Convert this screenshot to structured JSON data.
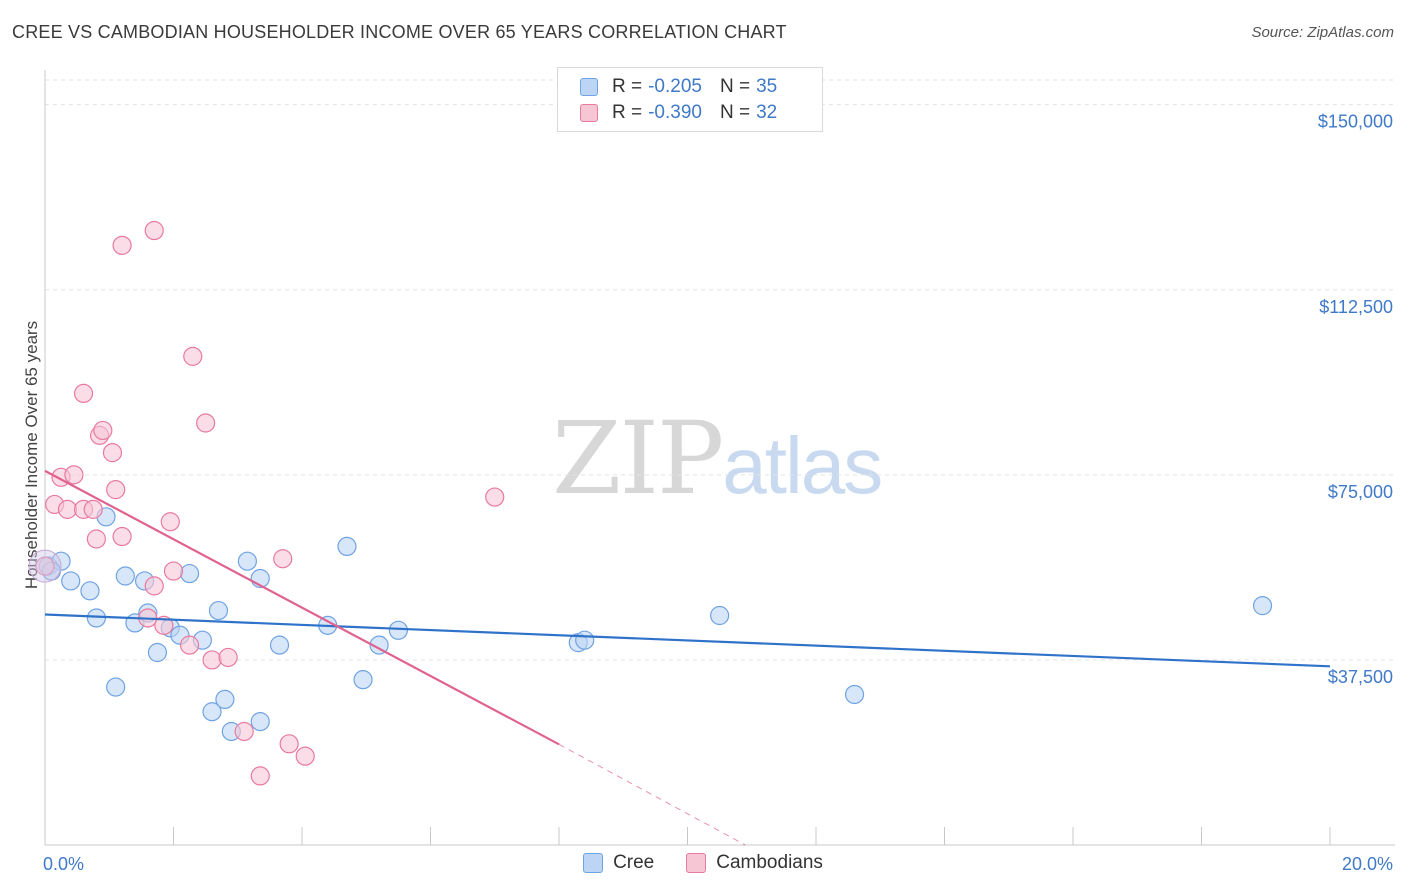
{
  "title": "CREE VS CAMBODIAN HOUSEHOLDER INCOME OVER 65 YEARS CORRELATION CHART",
  "source": "Source: ZipAtlas.com",
  "watermark": {
    "part1": "ZIP",
    "part2": "atlas"
  },
  "legend": {
    "rows": [
      {
        "r_label": "R = ",
        "r_value": "-0.205",
        "n_label": "N = ",
        "n_value": "35",
        "color": "#a8c8f0"
      },
      {
        "r_label": "R = ",
        "r_value": "-0.390",
        "n_label": "N = ",
        "n_value": "32",
        "color": "#f5b8cb"
      }
    ]
  },
  "bottom_legend": [
    "Cree",
    "Cambodians"
  ],
  "colors": {
    "cree": "#6fa3e3",
    "cree_fill": "#bcd5f4",
    "cambodian": "#e87a9e",
    "cambodian_fill": "#f7c6d5",
    "cree_line": "#2f72c9",
    "cambodian_line": "#e0628e",
    "tick_text": "#3f79c8"
  },
  "chart_data": {
    "type": "scatter",
    "title": "CREE VS CAMBODIAN HOUSEHOLDER INCOME OVER 65 YEARS CORRELATION CHART",
    "xlabel": "",
    "ylabel": "Householder Income Over 65 years",
    "xlim": [
      0,
      20
    ],
    "ylim": [
      0,
      155000
    ],
    "x_tick_labels": [
      "0.0%",
      "20.0%"
    ],
    "y_ticks": [
      37500,
      75000,
      112500,
      150000
    ],
    "y_tick_labels": [
      "$37,500",
      "$75,000",
      "$112,500",
      "$150,000"
    ],
    "grid": "horizontal dashed",
    "legend_position": "top-center",
    "series": [
      {
        "name": "Cree",
        "points": [
          [
            0.05,
            56500
          ],
          [
            0.25,
            57500
          ],
          [
            0.4,
            53500
          ],
          [
            0.7,
            51500
          ],
          [
            0.8,
            46000
          ],
          [
            0.95,
            66500
          ],
          [
            1.1,
            32000
          ],
          [
            1.25,
            54500
          ],
          [
            1.4,
            45000
          ],
          [
            1.55,
            53500
          ],
          [
            1.6,
            47000
          ],
          [
            1.75,
            39000
          ],
          [
            1.95,
            44000
          ],
          [
            2.1,
            42500
          ],
          [
            2.25,
            55000
          ],
          [
            2.45,
            41500
          ],
          [
            2.6,
            27000
          ],
          [
            2.7,
            47500
          ],
          [
            2.8,
            29500
          ],
          [
            2.9,
            23000
          ],
          [
            3.15,
            57500
          ],
          [
            3.35,
            54000
          ],
          [
            3.35,
            25000
          ],
          [
            3.65,
            40500
          ],
          [
            4.4,
            44500
          ],
          [
            4.7,
            60500
          ],
          [
            4.95,
            33500
          ],
          [
            5.2,
            40500
          ],
          [
            5.5,
            43500
          ],
          [
            8.3,
            41000
          ],
          [
            8.4,
            41500
          ],
          [
            10.5,
            46500
          ],
          [
            12.6,
            30500
          ],
          [
            18.95,
            48500
          ],
          [
            0.1,
            55500
          ]
        ],
        "trend": {
          "x": [
            0,
            20
          ],
          "y": [
            46700,
            36200
          ]
        }
      },
      {
        "name": "Cambodians",
        "points": [
          [
            0.0,
            56500
          ],
          [
            0.15,
            69000
          ],
          [
            0.25,
            74500
          ],
          [
            0.35,
            68000
          ],
          [
            0.45,
            75000
          ],
          [
            0.6,
            68000
          ],
          [
            0.6,
            91500
          ],
          [
            0.75,
            68000
          ],
          [
            0.8,
            62000
          ],
          [
            0.85,
            83000
          ],
          [
            0.9,
            84000
          ],
          [
            1.05,
            79500
          ],
          [
            1.1,
            72000
          ],
          [
            1.2,
            62500
          ],
          [
            1.2,
            121500
          ],
          [
            1.6,
            46000
          ],
          [
            1.7,
            52500
          ],
          [
            1.7,
            124500
          ],
          [
            1.85,
            44500
          ],
          [
            1.95,
            65500
          ],
          [
            2.0,
            55500
          ],
          [
            2.25,
            40500
          ],
          [
            2.3,
            99000
          ],
          [
            2.5,
            85500
          ],
          [
            2.6,
            37500
          ],
          [
            2.85,
            38000
          ],
          [
            3.1,
            23000
          ],
          [
            3.35,
            14000
          ],
          [
            3.7,
            58000
          ],
          [
            3.8,
            20500
          ],
          [
            4.05,
            18000
          ],
          [
            7.0,
            70500
          ]
        ],
        "trend": {
          "x": [
            0,
            8.0
          ],
          "y": [
            75800,
            20400
          ]
        },
        "trend_dashed_extension": {
          "x": [
            8.0,
            10.9
          ],
          "y": [
            20400,
            0
          ]
        }
      }
    ]
  }
}
